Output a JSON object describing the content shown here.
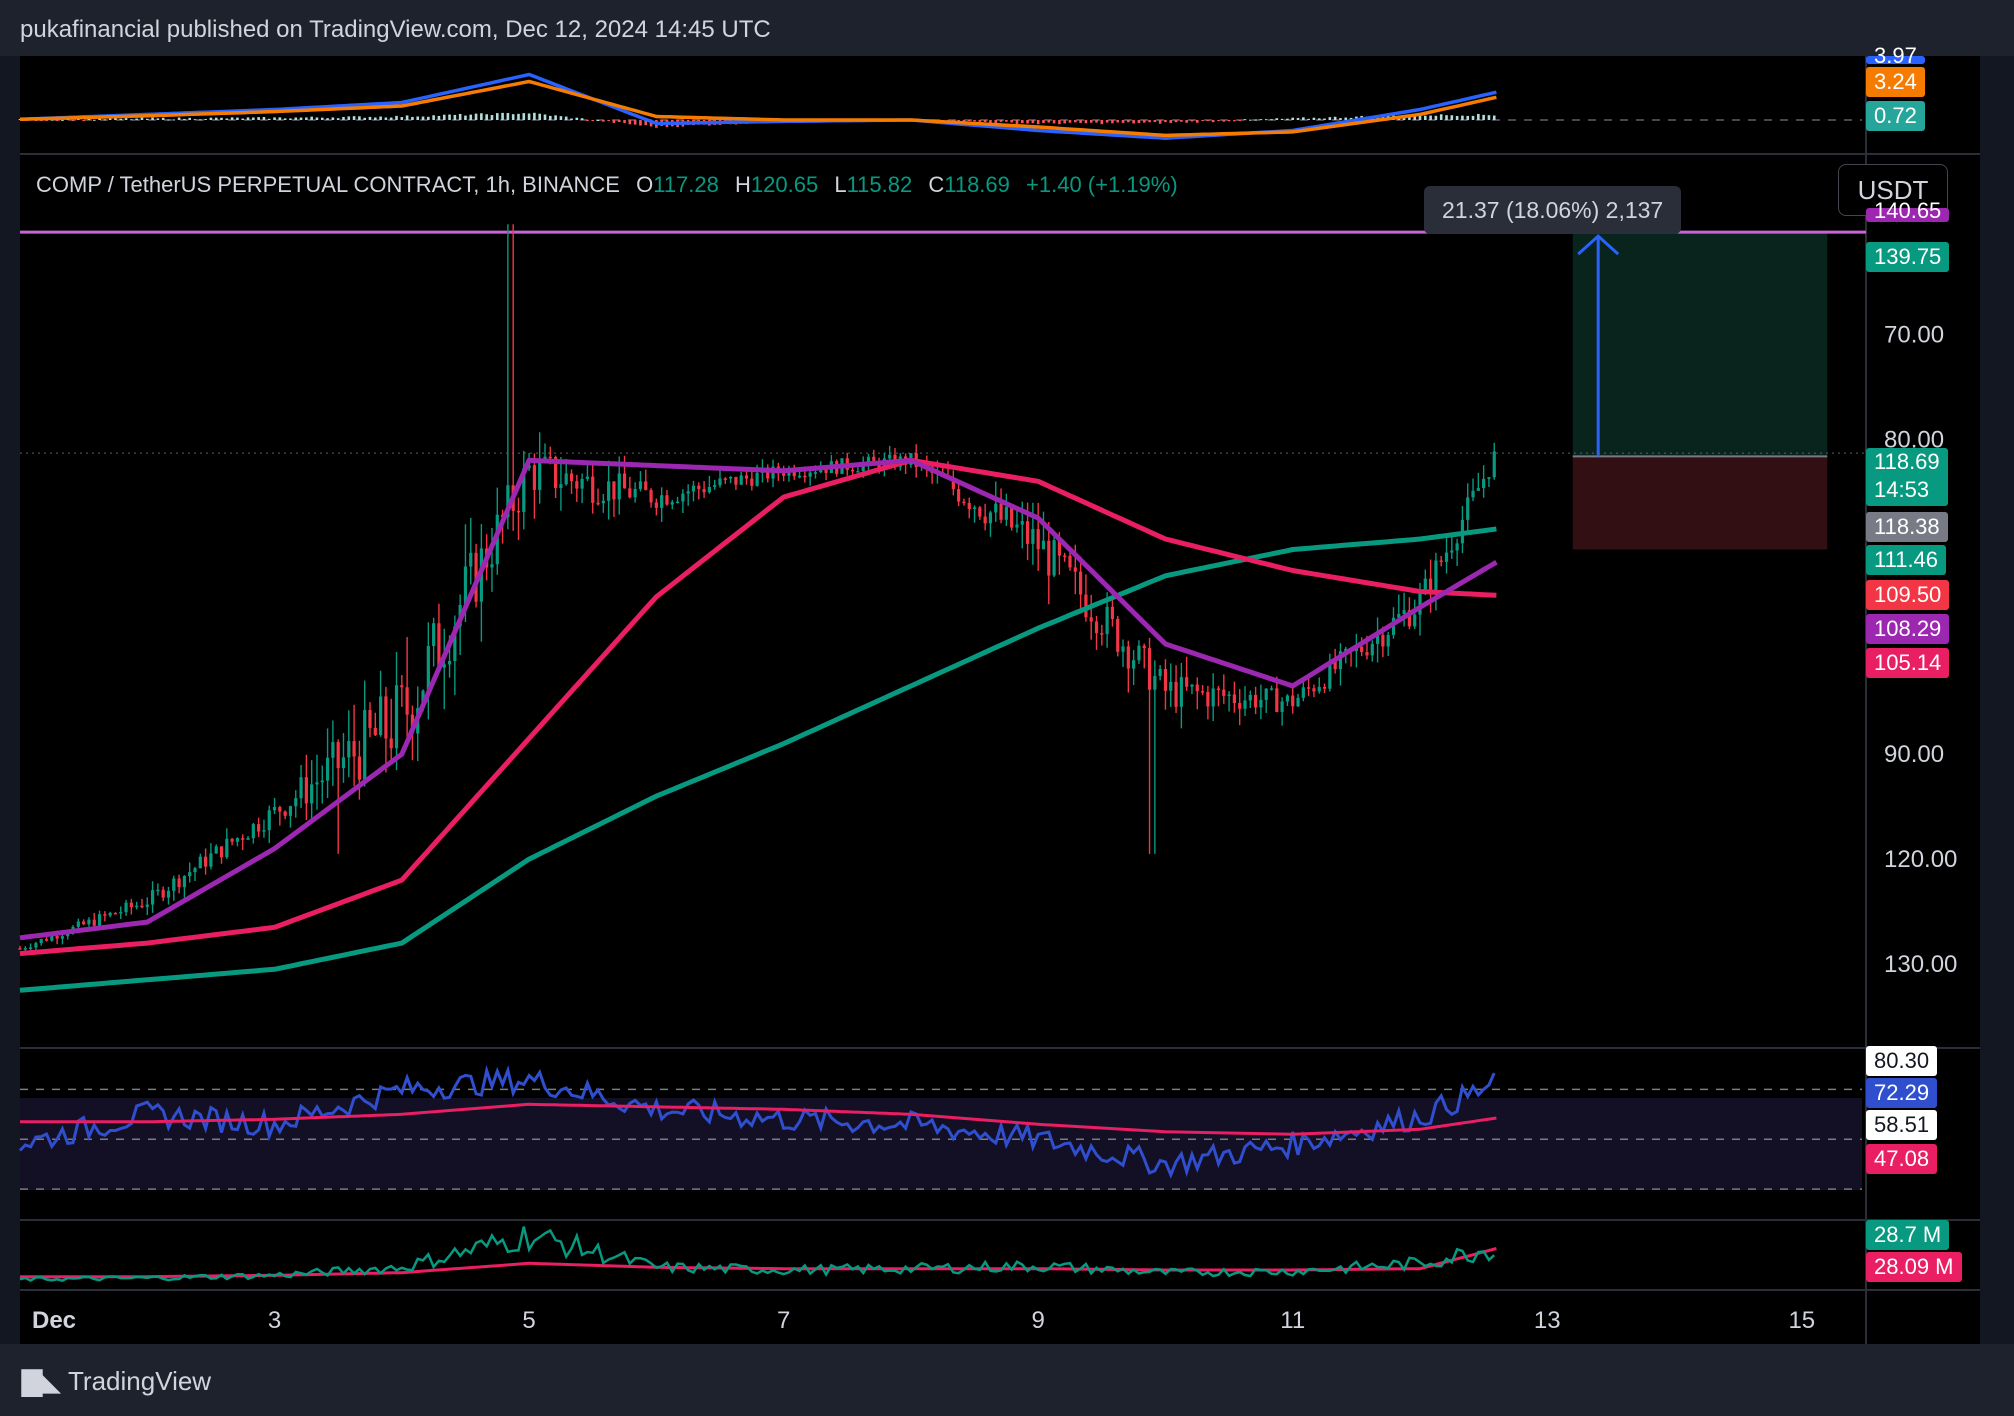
{
  "header": {
    "text": "pukafinancial published on TradingView.com, Dec 12, 2024 14:45 UTC"
  },
  "footer": {
    "logo_text": "TradingView"
  },
  "symbol_legend": {
    "name": "COMP / TetherUS PERPETUAL CONTRACT, 1h, BINANCE",
    "o_label": "O",
    "o": "117.28",
    "h_label": "H",
    "h": "120.65",
    "l_label": "L",
    "l": "115.82",
    "c_label": "C",
    "c": "118.69",
    "change": "+1.40 (+1.19%)"
  },
  "currency_button": "USDT",
  "measure_tooltip": "21.37 (18.06%) 2,137",
  "price_labels": [
    {
      "text": "140.65",
      "bg": "#9c27b0",
      "fg": "#ffffff",
      "clipped": true
    },
    {
      "text": "139.75",
      "bg": "#089981",
      "fg": "#ffffff"
    },
    {
      "text": "118.69",
      "bg": "#089981",
      "fg": "#ffffff",
      "sub": "14:53"
    },
    {
      "text": "118.38",
      "bg": "#787b86",
      "fg": "#ffffff"
    },
    {
      "text": "111.46",
      "bg": "#089981",
      "fg": "#ffffff"
    },
    {
      "text": "109.50",
      "bg": "#f23645",
      "fg": "#ffffff"
    },
    {
      "text": "108.29",
      "bg": "#9c27b0",
      "fg": "#ffffff"
    },
    {
      "text": "105.14",
      "bg": "#e91e63",
      "fg": "#ffffff"
    }
  ],
  "macd_labels": [
    {
      "text": "3.97",
      "bg": "#2962ff",
      "clipped": true
    },
    {
      "text": "3.24",
      "bg": "#f57c00"
    },
    {
      "text": "0.72",
      "bg": "#26a69a"
    }
  ],
  "rsi_labels": [
    {
      "text": "80.30",
      "bg": "#ffffff",
      "fg": "#131722"
    },
    {
      "text": "72.29",
      "bg": "#2f4fcf",
      "fg": "#ffffff"
    },
    {
      "text": "58.51",
      "bg": "#ffffff",
      "fg": "#131722"
    },
    {
      "text": "47.08",
      "bg": "#e91e63",
      "fg": "#ffffff"
    }
  ],
  "volume_labels": [
    {
      "text": "28.7 M",
      "bg": "#089981",
      "fg": "#ffffff"
    },
    {
      "text": "28.09 M",
      "bg": "#e91e63",
      "fg": "#ffffff"
    }
  ],
  "y_axis_ticks": [
    "130.00",
    "120.00",
    "90.00",
    "80.00",
    "70.00"
  ],
  "x_axis_ticks": [
    "Dec",
    "3",
    "5",
    "7",
    "9",
    "11",
    "13",
    "15"
  ],
  "colors": {
    "up": "#089981",
    "down": "#f23645",
    "ma_short": "#9c27b0",
    "ma_mid": "#e91e63",
    "ma_long": "#089981",
    "resistance_line": "#c964d8",
    "measure_arrow": "#2962ff",
    "rsi_line": "#2f4fcf",
    "rsi_ma": "#e91e63",
    "macd_line": "#2962ff",
    "signal_line": "#f57c00"
  },
  "chart_data": {
    "type": "candlestick",
    "symbol": "COMP / TetherUS PERPETUAL CONTRACT",
    "interval": "1h",
    "exchange": "BINANCE",
    "x_dates": [
      "Dec 1",
      "Dec 2",
      "Dec 3",
      "Dec 4",
      "Dec 5",
      "Dec 6",
      "Dec 7",
      "Dec 8",
      "Dec 9",
      "Dec 10",
      "Dec 11",
      "Dec 12",
      "Dec 12.6"
    ],
    "close": [
      71.5,
      76.0,
      84.5,
      93.5,
      117.0,
      114.5,
      117.0,
      118.0,
      110.0,
      96.0,
      95.0,
      104.5,
      118.69
    ],
    "high": [
      73.5,
      80.0,
      88.5,
      140.5,
      135.5,
      121.5,
      121.0,
      121.5,
      119.5,
      102.5,
      101.0,
      115.5,
      120.65
    ],
    "low": [
      69.5,
      71.0,
      75.0,
      86.0,
      105.0,
      107.0,
      112.0,
      112.0,
      91.0,
      80.0,
      88.0,
      94.5,
      108.0
    ],
    "ma_short_values": [
      72.5,
      74.0,
      81.0,
      90.0,
      118.0,
      117.5,
      117.0,
      118.0,
      112.5,
      100.5,
      96.5,
      104.0,
      108.29
    ],
    "ma_mid_values": [
      71.0,
      72.0,
      73.5,
      78.0,
      91.5,
      105.0,
      114.5,
      118.0,
      116.0,
      110.5,
      107.5,
      105.5,
      105.14
    ],
    "ma_long_values": [
      67.5,
      68.5,
      69.5,
      72.0,
      80.0,
      86.0,
      91.0,
      96.5,
      102.0,
      107.0,
      109.5,
      110.5,
      111.46
    ],
    "resistance": 139.75,
    "measurement": {
      "entry": 118.38,
      "target": 139.75,
      "stop": 109.5,
      "change": "21.37 (18.06%) 2,137"
    },
    "ylim": [
      62,
      143
    ],
    "y_ticks": [
      70,
      80,
      90,
      120,
      130
    ],
    "rsi": {
      "values": [
        48,
        60,
        56,
        70,
        74,
        62,
        58,
        56,
        50,
        40,
        48,
        59,
        72.29
      ],
      "ma_values": [
        57,
        57,
        58,
        60,
        64,
        63,
        62,
        60,
        56,
        53,
        52,
        54,
        58.51
      ],
      "levels": [
        70,
        50,
        30
      ]
    },
    "macd": {
      "macd_values": [
        0.1,
        0.8,
        1.5,
        2.5,
        6.5,
        -0.5,
        -0.2,
        0.0,
        -1.5,
        -2.6,
        -1.5,
        1.5,
        3.97
      ],
      "signal_values": [
        0.1,
        0.6,
        1.2,
        2.0,
        5.5,
        0.5,
        0.0,
        0.0,
        -1.0,
        -2.2,
        -1.7,
        0.8,
        3.24
      ]
    },
    "volume": {
      "values_M": [
        5,
        6,
        8,
        14,
        38,
        14,
        12,
        13,
        15,
        10,
        11,
        17,
        28.7
      ],
      "ma_M": [
        7,
        7,
        8,
        10,
        17,
        14,
        13,
        13,
        13,
        12,
        12,
        13,
        28.09
      ]
    }
  }
}
